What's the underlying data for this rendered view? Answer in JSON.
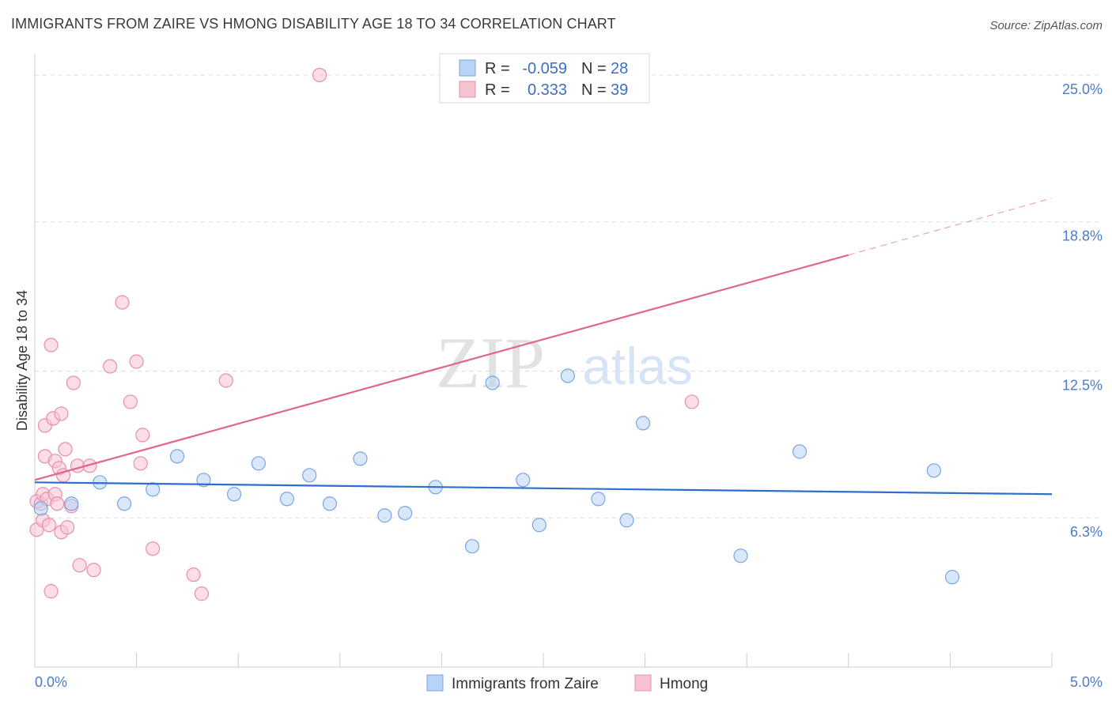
{
  "header": {
    "title": "IMMIGRANTS FROM ZAIRE VS HMONG DISABILITY AGE 18 TO 34 CORRELATION CHART",
    "source": "Source: ZipAtlas.com"
  },
  "watermark": {
    "zip": "ZIP",
    "atlas": "atlas"
  },
  "colors": {
    "blue_fill": "#b8d3f5",
    "blue_stroke": "#7aa6e0",
    "blue_line": "#2d6fcc",
    "pink_fill": "#f7c3d3",
    "pink_stroke": "#e88fab",
    "pink_line": "#e0658f",
    "tick_text": "#4a7cc9",
    "grid": "#dddddd"
  },
  "legend": {
    "rows": [
      {
        "r_label": "R =",
        "r_value": "-0.059",
        "n_label": "N =",
        "n_value": "28"
      },
      {
        "r_label": "R =",
        "r_value": "0.333",
        "n_label": "N =",
        "n_value": "39"
      }
    ]
  },
  "chart_data": {
    "type": "scatter",
    "title": "IMMIGRANTS FROM ZAIRE VS HMONG DISABILITY AGE 18 TO 34 CORRELATION CHART",
    "xlabel": "",
    "ylabel": "Disability Age 18 to 34",
    "xlim": [
      0,
      5.0
    ],
    "ylim": [
      0,
      25.9
    ],
    "x_tick_labels": [
      "0.0%",
      "5.0%"
    ],
    "y_ticks": [
      6.3,
      12.5,
      18.8,
      25.0
    ],
    "y_tick_labels": [
      "6.3%",
      "12.5%",
      "18.8%",
      "25.0%"
    ],
    "grid": true,
    "legend_position": "top-center",
    "series": [
      {
        "name": "Immigrants from Zaire",
        "r": -0.059,
        "n": 28,
        "trend": {
          "x": [
            0,
            5.0
          ],
          "y": [
            7.8,
            7.3
          ]
        },
        "points": [
          [
            0.03,
            6.7
          ],
          [
            0.18,
            6.9
          ],
          [
            0.32,
            7.8
          ],
          [
            0.44,
            6.9
          ],
          [
            0.58,
            7.5
          ],
          [
            0.7,
            8.9
          ],
          [
            0.83,
            7.9
          ],
          [
            0.98,
            7.3
          ],
          [
            1.1,
            8.6
          ],
          [
            1.24,
            7.1
          ],
          [
            1.35,
            8.1
          ],
          [
            1.45,
            6.9
          ],
          [
            1.6,
            8.8
          ],
          [
            1.72,
            6.4
          ],
          [
            1.82,
            6.5
          ],
          [
            1.97,
            7.6
          ],
          [
            2.15,
            5.1
          ],
          [
            2.25,
            12.0
          ],
          [
            2.4,
            7.9
          ],
          [
            2.48,
            6.0
          ],
          [
            2.62,
            12.3
          ],
          [
            2.77,
            7.1
          ],
          [
            2.91,
            6.2
          ],
          [
            2.99,
            10.3
          ],
          [
            3.47,
            4.7
          ],
          [
            3.76,
            9.1
          ],
          [
            4.42,
            8.3
          ],
          [
            4.51,
            3.8
          ]
        ]
      },
      {
        "name": "Hmong",
        "r": 0.333,
        "n": 39,
        "trend": {
          "x": [
            0,
            4.0
          ],
          "y": [
            7.9,
            17.4
          ]
        },
        "trend_extension": {
          "x": [
            4.0,
            5.0
          ],
          "y": [
            17.4,
            19.8
          ]
        },
        "points": [
          [
            0.01,
            7.0
          ],
          [
            0.01,
            5.8
          ],
          [
            0.03,
            6.9
          ],
          [
            0.04,
            6.2
          ],
          [
            0.04,
            7.3
          ],
          [
            0.05,
            8.9
          ],
          [
            0.05,
            10.2
          ],
          [
            0.06,
            7.1
          ],
          [
            0.07,
            6.0
          ],
          [
            0.08,
            3.2
          ],
          [
            0.08,
            13.6
          ],
          [
            0.09,
            10.5
          ],
          [
            0.1,
            8.7
          ],
          [
            0.1,
            7.3
          ],
          [
            0.11,
            6.9
          ],
          [
            0.12,
            8.4
          ],
          [
            0.13,
            10.7
          ],
          [
            0.13,
            5.7
          ],
          [
            0.14,
            8.1
          ],
          [
            0.15,
            9.2
          ],
          [
            0.16,
            5.9
          ],
          [
            0.18,
            6.8
          ],
          [
            0.19,
            12.0
          ],
          [
            0.21,
            8.5
          ],
          [
            0.22,
            4.3
          ],
          [
            0.27,
            8.5
          ],
          [
            0.29,
            4.1
          ],
          [
            0.37,
            12.7
          ],
          [
            0.43,
            15.4
          ],
          [
            0.47,
            11.2
          ],
          [
            0.5,
            12.9
          ],
          [
            0.52,
            8.6
          ],
          [
            0.53,
            9.8
          ],
          [
            0.58,
            5.0
          ],
          [
            0.78,
            3.9
          ],
          [
            0.82,
            3.1
          ],
          [
            0.94,
            12.1
          ],
          [
            1.4,
            25.0
          ],
          [
            3.23,
            11.2
          ]
        ]
      }
    ]
  }
}
